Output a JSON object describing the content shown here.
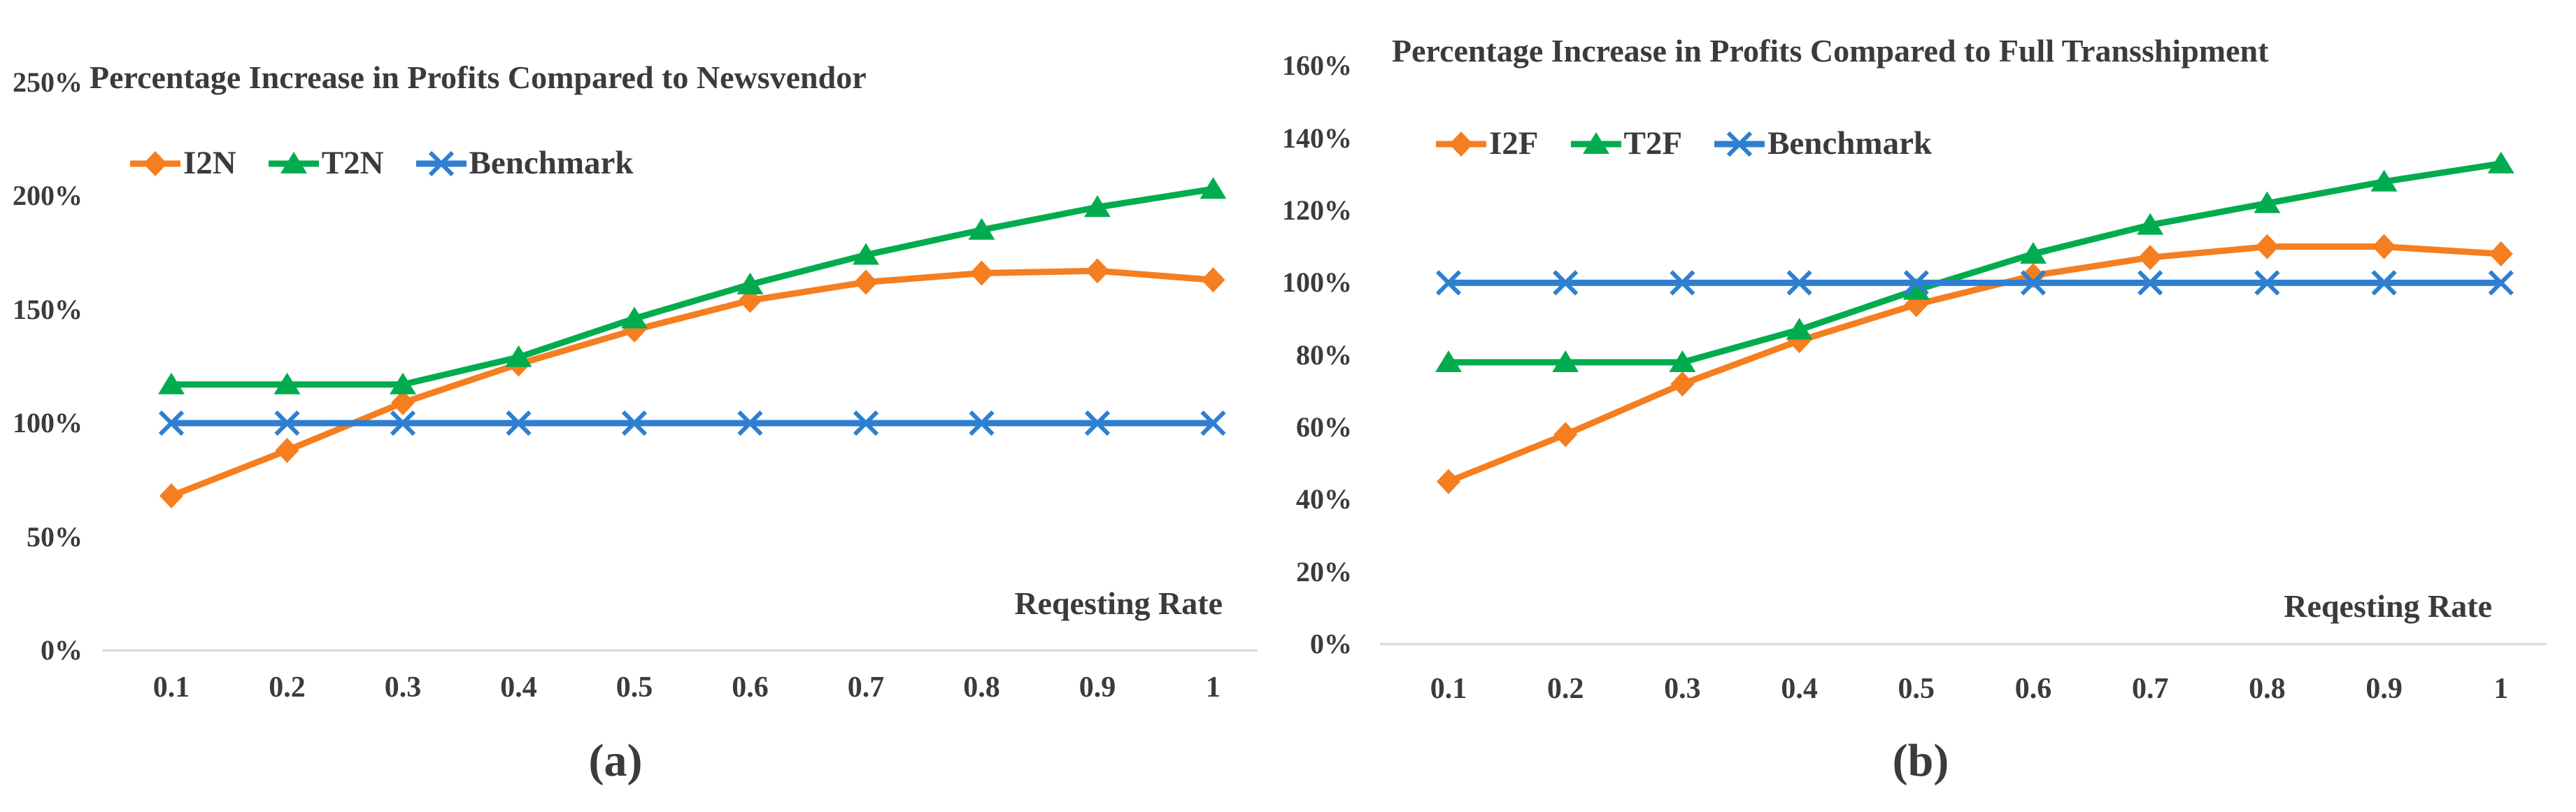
{
  "figure": {
    "background": "#FFFFFF",
    "text_color": "#3B3B3B",
    "axis_line_color": "#D9D9D9"
  },
  "chart_data": [
    {
      "type": "line",
      "title": "Percentage Increase in Profits Compared to Newsvendor",
      "caption": "(a)",
      "xlabel": "Reqesting Rate",
      "categories": [
        0.1,
        0.2,
        0.3,
        0.4,
        0.5,
        0.6,
        0.7,
        0.8,
        0.9,
        1
      ],
      "x_tick_labels": [
        "0.1",
        "0.2",
        "0.3",
        "0.4",
        "0.5",
        "0.6",
        "0.7",
        "0.8",
        "0.9",
        "1"
      ],
      "ylim": [
        0,
        250
      ],
      "ytick_step": 50,
      "y_tick_labels": [
        "0%",
        "50%",
        "100%",
        "150%",
        "200%",
        "250%"
      ],
      "grid": false,
      "legend_position": "top-left-inside",
      "series": [
        {
          "name": "I2N",
          "color": "#F57E20",
          "marker": "diamond",
          "values": [
            68,
            88,
            109,
            126,
            141,
            154,
            162,
            166,
            167,
            163
          ]
        },
        {
          "name": "T2N",
          "color": "#00AC4E",
          "marker": "triangle",
          "values": [
            117,
            117,
            117,
            129,
            146,
            161,
            174,
            185,
            195,
            203
          ]
        },
        {
          "name": "Benchmark",
          "color": "#2E7FD0",
          "marker": "x",
          "values": [
            100,
            100,
            100,
            100,
            100,
            100,
            100,
            100,
            100,
            100
          ]
        }
      ]
    },
    {
      "type": "line",
      "title": "Percentage Increase in Profits Compared to Full Transshipment",
      "caption": "(b)",
      "xlabel": "Reqesting Rate",
      "categories": [
        0.1,
        0.2,
        0.3,
        0.4,
        0.5,
        0.6,
        0.7,
        0.8,
        0.9,
        1
      ],
      "x_tick_labels": [
        "0.1",
        "0.2",
        "0.3",
        "0.4",
        "0.5",
        "0.6",
        "0.7",
        "0.8",
        "0.9",
        "1"
      ],
      "ylim": [
        0,
        160
      ],
      "ytick_step": 20,
      "y_tick_labels": [
        "0%",
        "20%",
        "40%",
        "60%",
        "80%",
        "100%",
        "120%",
        "140%",
        "160%"
      ],
      "grid": false,
      "legend_position": "top-left-inside",
      "series": [
        {
          "name": "I2F",
          "color": "#F57E20",
          "marker": "diamond",
          "values": [
            45,
            58,
            72,
            84,
            94,
            102,
            107,
            110,
            110,
            108
          ]
        },
        {
          "name": "T2F",
          "color": "#00AC4E",
          "marker": "triangle",
          "values": [
            78,
            78,
            78,
            87,
            98,
            108,
            116,
            122,
            128,
            133
          ]
        },
        {
          "name": "Benchmark",
          "color": "#2E7FD0",
          "marker": "x",
          "values": [
            100,
            100,
            100,
            100,
            100,
            100,
            100,
            100,
            100,
            100
          ]
        }
      ]
    }
  ]
}
